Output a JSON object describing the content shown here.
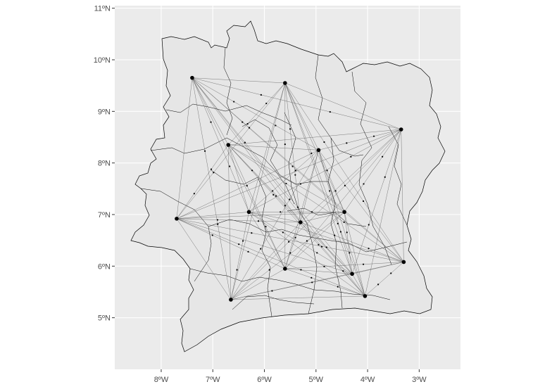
{
  "map": {
    "title": "",
    "x_labels": [
      "8ºW",
      "7ºW",
      "6ºW",
      "5ºW",
      "4ºW",
      "3ºW"
    ],
    "y_labels": [
      "5ºN",
      "6ºN",
      "7ºN",
      "8ºN",
      "9ºN",
      "10ºN",
      "11ºN"
    ],
    "colors": {
      "panel": "#ebebeb",
      "land": "#e6e6e6",
      "grid": "#ffffff",
      "border": "#000000",
      "edge": "#555555",
      "point": "#000000"
    }
  },
  "chart_data": {
    "type": "scatter",
    "description_type": "map",
    "x_unit": "degrees longitude",
    "y_unit": "degrees latitude",
    "xlim": [
      -8.9,
      -2.2
    ],
    "ylim": [
      4.0,
      11.05
    ],
    "x_ticks": [
      -8,
      -7,
      -6,
      -5,
      -4,
      -3
    ],
    "y_ticks": [
      5,
      6,
      7,
      8,
      9,
      10,
      11
    ],
    "hubs": [
      {
        "lon": -7.4,
        "lat": 9.65
      },
      {
        "lon": -5.6,
        "lat": 9.55
      },
      {
        "lon": -3.35,
        "lat": 8.65
      },
      {
        "lon": -6.7,
        "lat": 8.35
      },
      {
        "lon": -4.95,
        "lat": 8.25
      },
      {
        "lon": -7.7,
        "lat": 6.92
      },
      {
        "lon": -6.3,
        "lat": 7.05
      },
      {
        "lon": -5.3,
        "lat": 6.85
      },
      {
        "lon": -4.45,
        "lat": 7.05
      },
      {
        "lon": -5.6,
        "lat": 5.95
      },
      {
        "lon": -4.3,
        "lat": 5.85
      },
      {
        "lon": -3.3,
        "lat": 6.08
      },
      {
        "lon": -6.65,
        "lat": 5.35
      },
      {
        "lon": -4.05,
        "lat": 5.42
      }
    ]
  }
}
